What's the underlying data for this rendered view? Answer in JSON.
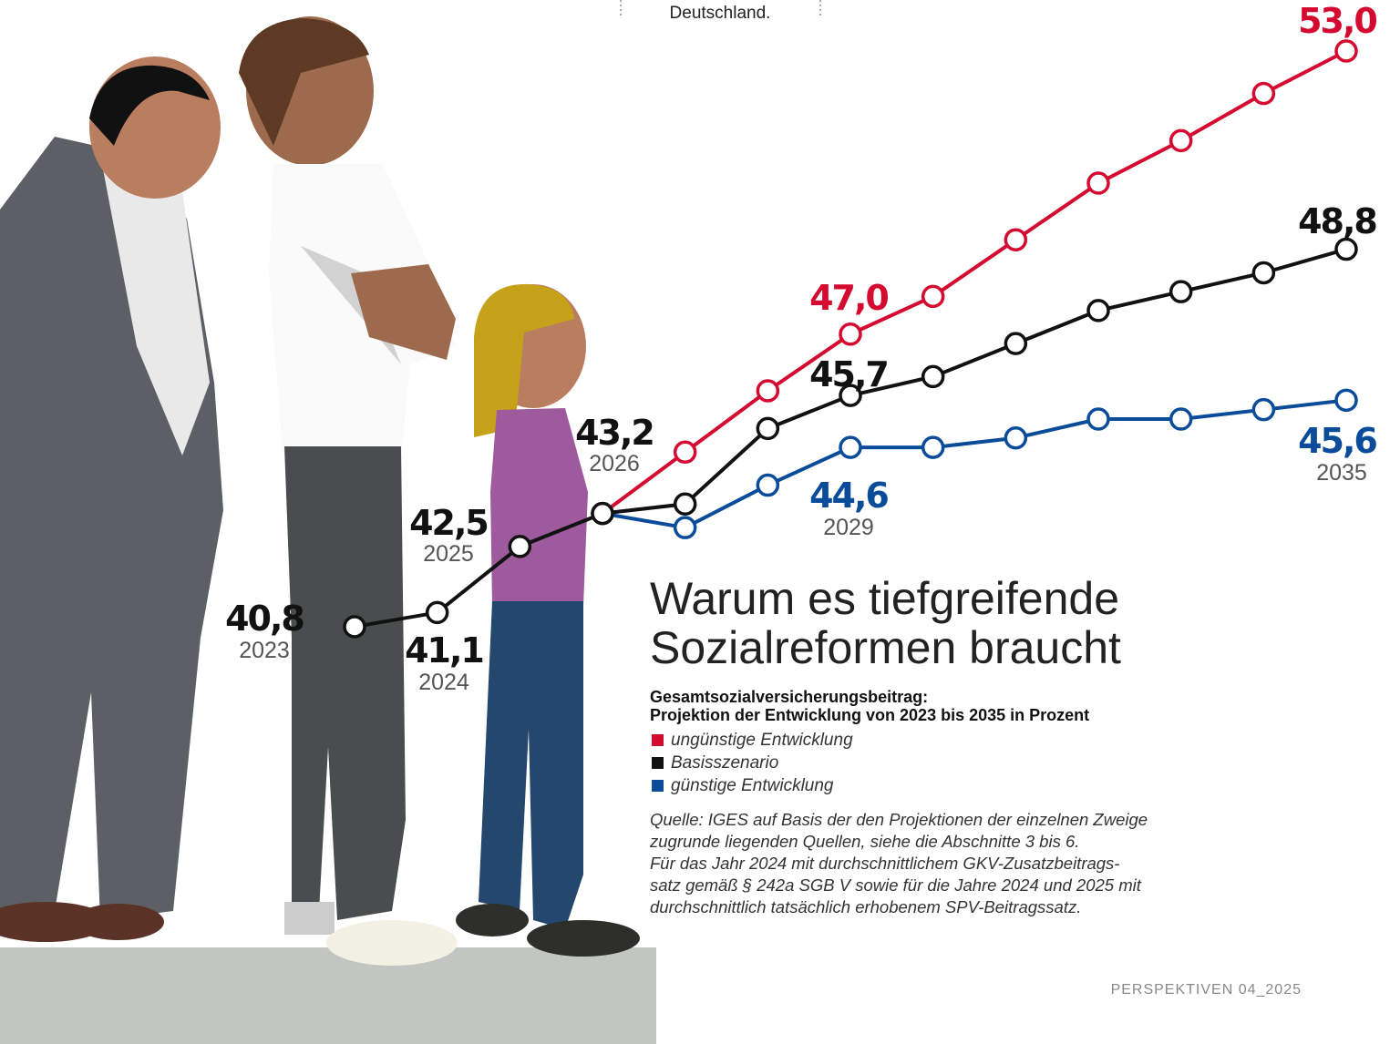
{
  "chart_data": {
    "type": "line",
    "header_note": "Deutschland.",
    "title": [
      "Warum es tiefgreifende",
      "Sozialreformen braucht"
    ],
    "subtitle": [
      "Gesamtsozialversicherungsbeitrag:",
      "Projektion der Entwicklung von 2023 bis 2035 in Prozent"
    ],
    "categories": [
      "2023",
      "2024",
      "2025",
      "2026",
      null,
      null,
      "2029",
      null,
      null,
      null,
      null,
      null,
      "2035"
    ],
    "ylim": [
      40,
      54
    ],
    "series": [
      {
        "name": "ungünstige Entwicklung",
        "color": "#d50a30",
        "values": [
          null,
          null,
          null,
          43.2,
          44.5,
          45.8,
          47.0,
          47.8,
          49.0,
          50.2,
          51.1,
          52.1,
          53.0
        ],
        "value_labels": [
          null,
          null,
          null,
          null,
          null,
          null,
          "47,0",
          null,
          null,
          null,
          null,
          null,
          "53,0"
        ]
      },
      {
        "name": "Basisszenario",
        "color": "#111111",
        "values": [
          40.8,
          41.1,
          42.5,
          43.2,
          43.4,
          45.0,
          45.7,
          46.1,
          46.8,
          47.5,
          47.9,
          48.3,
          48.8
        ],
        "value_labels": [
          "40,8",
          "41,1",
          "42,5",
          "43,2",
          null,
          null,
          "45,7",
          null,
          null,
          null,
          null,
          null,
          "48,8"
        ]
      },
      {
        "name": "günstige Entwicklung",
        "color": "#0a4c9a",
        "values": [
          null,
          null,
          null,
          43.2,
          42.9,
          43.8,
          44.6,
          44.6,
          44.8,
          45.2,
          45.2,
          45.4,
          45.6
        ],
        "value_labels": [
          null,
          null,
          null,
          null,
          null,
          null,
          "44,6",
          null,
          null,
          null,
          null,
          null,
          "45,6"
        ]
      }
    ],
    "source": [
      "Quelle: IGES auf Basis der den Projektionen der einzelnen Zweige",
      "zugrunde liegenden Quellen, siehe die Abschnitte 3 bis 6.",
      "Für das Jahr 2024 mit durchschnittlichem GKV-Zusatzbeitrags-",
      "satz gemäß § 242a SGB V sowie für die Jahre 2024 und 2025 mit",
      "durchschnittlich tatsächlich erhobenem SPV-Beitragssatz."
    ],
    "footer": "PERSPEKTIVEN  04_2025"
  }
}
